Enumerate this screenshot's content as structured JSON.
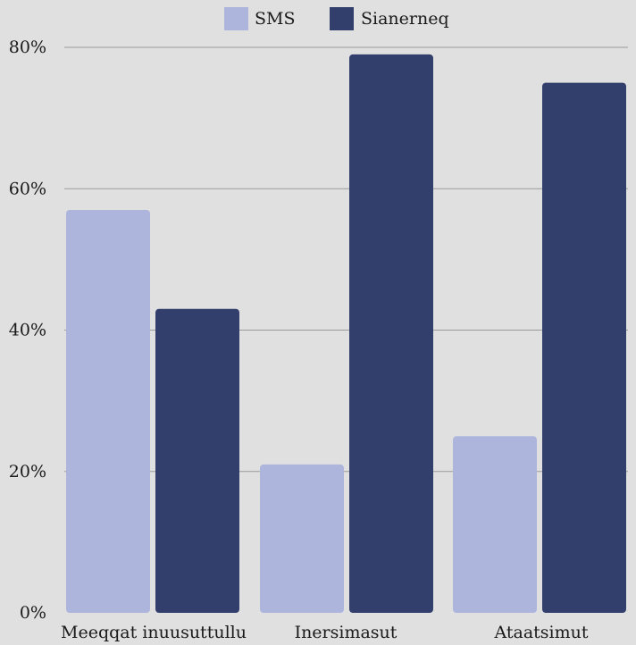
{
  "chart_data": {
    "type": "bar",
    "title": "",
    "xlabel": "",
    "ylabel": "",
    "categories": [
      "Meeqqat inuusuttullu",
      "Inersimasut",
      "Ataatsimut"
    ],
    "series": [
      {
        "name": "SMS",
        "color": "#adb5dd",
        "values": [
          57,
          21,
          25
        ]
      },
      {
        "name": "Sianerneq",
        "color": "#323f6c",
        "values": [
          43,
          79,
          75
        ]
      }
    ],
    "ylim": [
      0,
      80
    ],
    "yticks": [
      0,
      20,
      40,
      60,
      80
    ],
    "ytick_labels": [
      "0%",
      "20%",
      "40%",
      "60%",
      "80%"
    ],
    "grid": true,
    "legend_position": "top-center"
  },
  "colors": {
    "background": "#e0e0e0",
    "gridline": "#9a9a9a",
    "text": "#1a1a1a"
  }
}
